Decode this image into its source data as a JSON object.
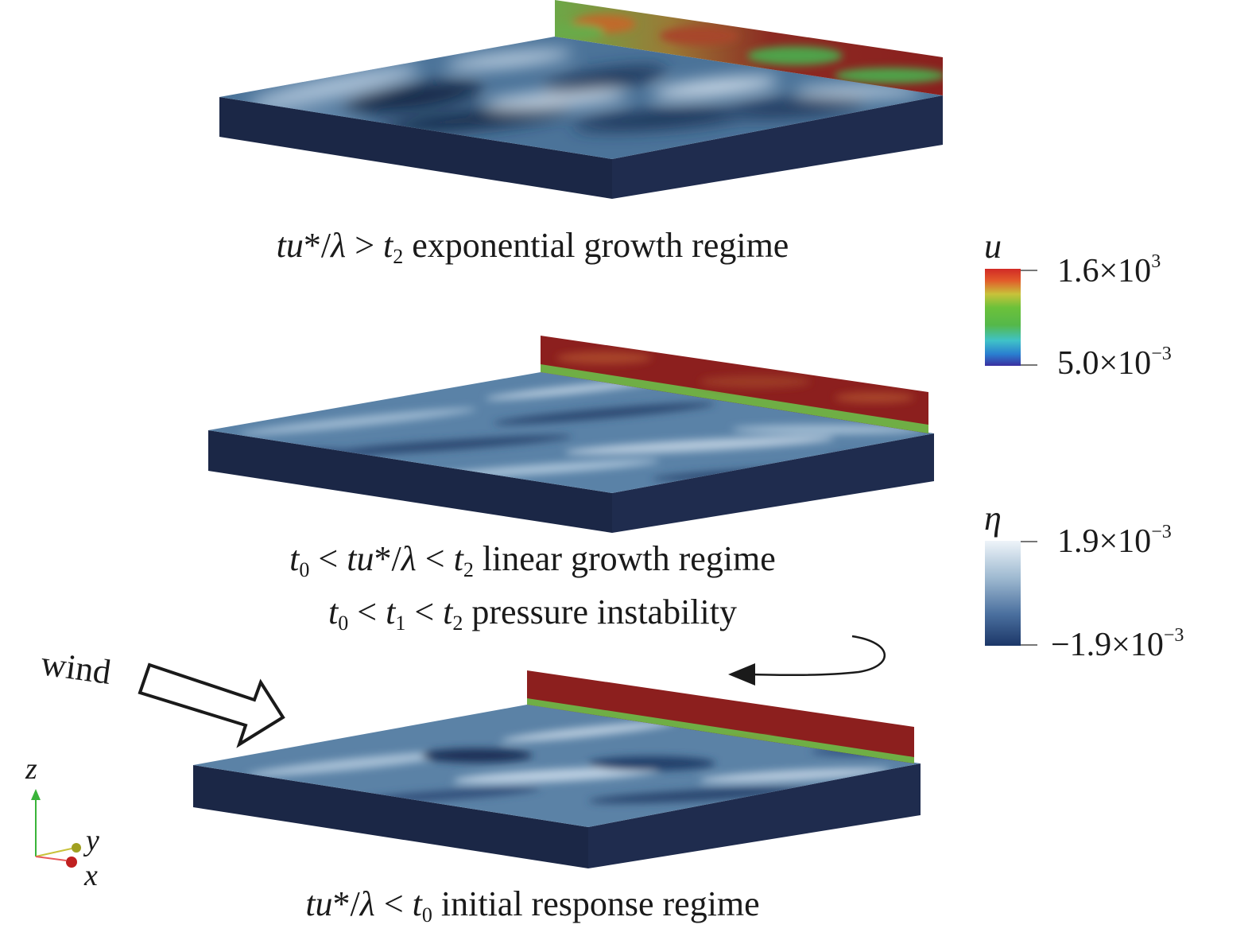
{
  "panels": [
    {
      "id": "exponential",
      "caption_parts": [
        "tu",
        "*/",
        "λ",
        " > ",
        "t",
        "2",
        " exponential growth regime"
      ]
    },
    {
      "id": "linear",
      "caption_parts": [
        "t",
        "0",
        " < ",
        "tu",
        "*/",
        "λ",
        " < ",
        "t",
        "2",
        " linear growth regime"
      ],
      "caption2_parts": [
        "t",
        "0",
        " < ",
        "t",
        "1",
        " < ",
        "t",
        "2",
        " pressure instability"
      ]
    },
    {
      "id": "initial",
      "caption_parts": [
        "tu",
        "*/",
        "λ",
        " < ",
        "t",
        "0",
        " initial response regime"
      ]
    }
  ],
  "colorbars": [
    {
      "variable": "u",
      "max_mantissa": "1.6×10",
      "max_exp": "3",
      "min_mantissa": "5.0×10",
      "min_exp": "−3",
      "colors": [
        "#3a2fa0",
        "#2a7fd0",
        "#3fc2c8",
        "#5dc23a",
        "#7cc43a",
        "#c8c23a",
        "#e88a2a",
        "#d12a26"
      ]
    },
    {
      "variable": "η",
      "max_mantissa": "1.9×10",
      "max_exp": "−3",
      "min_mantissa": "−1.9×10",
      "min_exp": "−3",
      "colors": [
        "#1c3768",
        "#4a6f9e",
        "#97b3cc",
        "#eef4f9"
      ]
    }
  ],
  "wind_label": "wind",
  "axes": {
    "z": "z",
    "y": "y",
    "x": "x"
  },
  "colors": {
    "wave_dark": "#1e3558",
    "wave_mid": "#4b7399",
    "wave_light": "#b9cde0",
    "box_side": "#1b2746",
    "wall_red": "#8c1f1e",
    "wall_green": "#6fae45"
  }
}
